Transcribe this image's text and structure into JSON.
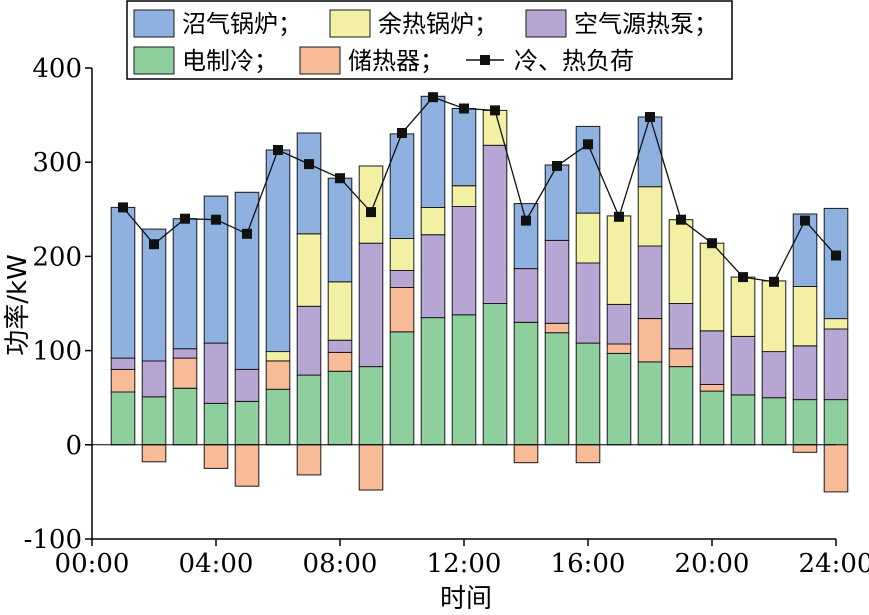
{
  "chart_data": {
    "type": "bar",
    "xlabel": "时间",
    "ylabel": "功率/kW",
    "ylim": [
      -100,
      400
    ],
    "yticks": [
      -100,
      0,
      100,
      200,
      300,
      400
    ],
    "xlim": [
      0,
      24
    ],
    "xticks": [
      "00:00",
      "04:00",
      "08:00",
      "12:00",
      "16:00",
      "20:00",
      "24:00"
    ],
    "hours": [
      1,
      2,
      3,
      4,
      5,
      6,
      7,
      8,
      9,
      10,
      11,
      12,
      13,
      14,
      15,
      16,
      17,
      18,
      19,
      20,
      21,
      22,
      23,
      24
    ],
    "series": [
      {
        "name": "电制冷",
        "color": "#8fcf9e",
        "values": [
          56,
          51,
          60,
          44,
          46,
          59,
          74,
          78,
          83,
          120,
          135,
          138,
          150,
          130,
          119,
          108,
          97,
          88,
          83,
          57,
          53,
          50,
          48,
          48
        ]
      },
      {
        "name": "储热器",
        "color": "#f7bb98",
        "values": [
          24,
          -18,
          32,
          -25,
          -44,
          30,
          -32,
          20,
          -48,
          47,
          0,
          0,
          0,
          -19,
          10,
          -19,
          10,
          46,
          19,
          7,
          0,
          0,
          -8,
          -50
        ]
      },
      {
        "name": "空气源热泵",
        "color": "#b7a6d3",
        "values": [
          12,
          38,
          10,
          64,
          34,
          0,
          73,
          13,
          131,
          18,
          88,
          115,
          168,
          57,
          88,
          85,
          42,
          77,
          48,
          57,
          62,
          49,
          57,
          75
        ]
      },
      {
        "name": "余热锅炉",
        "color": "#f4f0a3",
        "values": [
          0,
          0,
          0,
          0,
          0,
          10,
          77,
          62,
          82,
          34,
          29,
          22,
          37,
          0,
          0,
          53,
          94,
          63,
          89,
          93,
          63,
          75,
          63,
          11
        ]
      },
      {
        "name": "沼气锅炉",
        "color": "#8eb1e0",
        "values": [
          160,
          140,
          138,
          156,
          188,
          214,
          107,
          110,
          0,
          111,
          118,
          82,
          0,
          69,
          80,
          92,
          0,
          74,
          0,
          0,
          0,
          0,
          77,
          117
        ]
      }
    ],
    "load": {
      "name": "冷、热负荷",
      "values": [
        252,
        213,
        240,
        239,
        224,
        313,
        298,
        283,
        247,
        331,
        369,
        357,
        355,
        238,
        296,
        319,
        242,
        348,
        239,
        214,
        178,
        173,
        238,
        201
      ]
    },
    "legend_rows": [
      [
        {
          "label": "沼气锅炉；",
          "key": "沼气锅炉"
        },
        {
          "label": "余热锅炉；",
          "key": "余热锅炉"
        },
        {
          "label": "空气源热泵；",
          "key": "空气源热泵"
        }
      ],
      [
        {
          "label": "电制冷；",
          "key": "电制冷"
        },
        {
          "label": "储热器；",
          "key": "储热器"
        },
        {
          "label": "冷、热负荷",
          "key": "load"
        }
      ]
    ]
  }
}
